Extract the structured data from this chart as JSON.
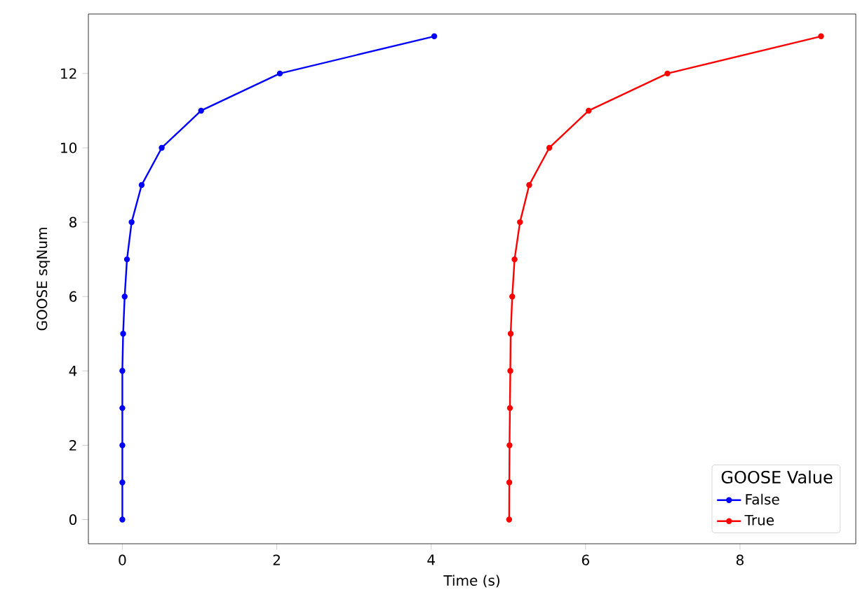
{
  "chart_data": {
    "type": "line",
    "xlabel": "Time (s)",
    "ylabel": "GOOSE sqNum",
    "legend_title": "GOOSE Value",
    "legend": "bottom right",
    "marker": "circle",
    "line_style": "solid",
    "grid": false,
    "xlim": [
      -0.44,
      9.5
    ],
    "ylim": [
      -0.65,
      13.6
    ],
    "xticks": [
      0,
      2,
      4,
      6,
      8
    ],
    "yticks": [
      0,
      2,
      4,
      6,
      8,
      10,
      12
    ],
    "series": [
      {
        "name": "False",
        "color": "#0000ff",
        "x": [
          0,
          0,
          0,
          0,
          0,
          0.01,
          0.03,
          0.06,
          0.12,
          0.25,
          0.51,
          1.02,
          2.04,
          4.04
        ],
        "values": [
          0,
          1,
          2,
          3,
          4,
          5,
          6,
          7,
          8,
          9,
          10,
          11,
          12,
          13
        ]
      },
      {
        "name": "True",
        "color": "#ff0000",
        "x": [
          5.01,
          5.012,
          5.015,
          5.02,
          5.025,
          5.03,
          5.05,
          5.08,
          5.15,
          5.27,
          5.53,
          6.04,
          7.06,
          9.05
        ],
        "values": [
          0,
          1,
          2,
          3,
          4,
          5,
          6,
          7,
          8,
          9,
          10,
          11,
          12,
          13
        ]
      }
    ]
  }
}
